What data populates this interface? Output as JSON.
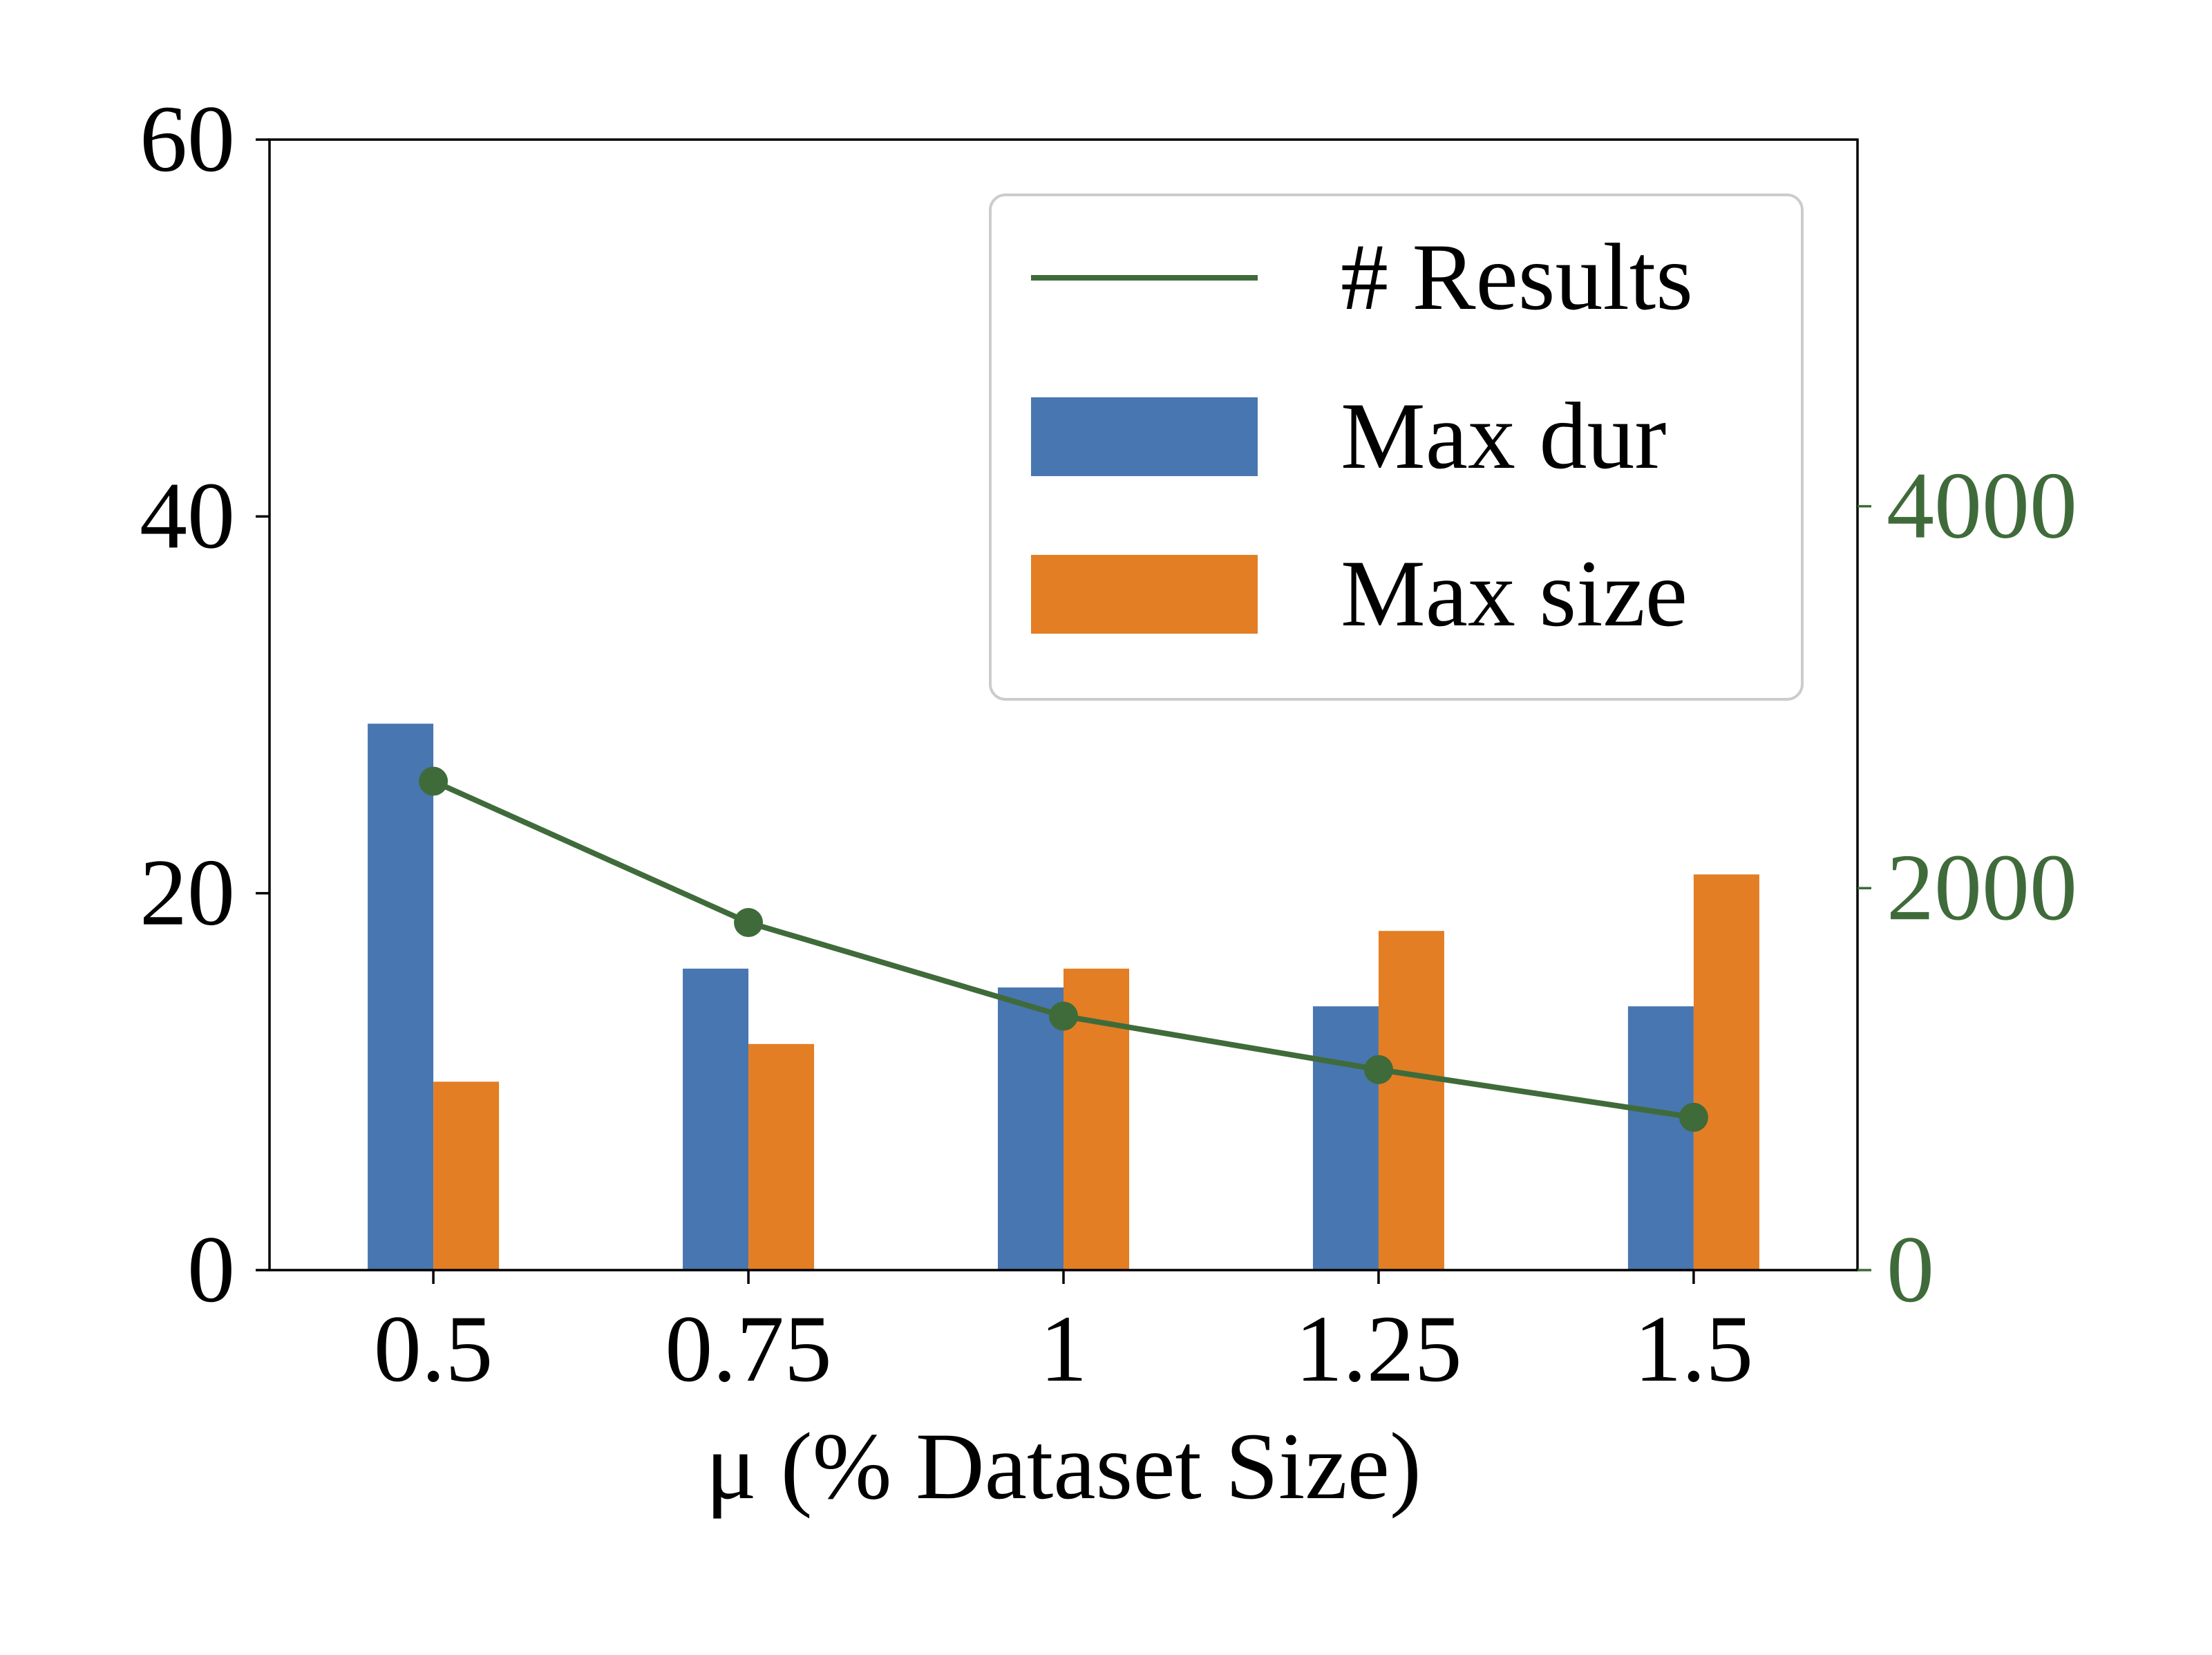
{
  "chart_data": {
    "type": "bar",
    "categories": [
      "0.5",
      "0.75",
      "1",
      "1.25",
      "1.5"
    ],
    "xlabel": "μ (% Dataset Size)",
    "ylabel": "",
    "ylim": [
      0,
      60
    ],
    "y_ticks": [
      "0",
      "20",
      "40",
      "60"
    ],
    "y2label": "",
    "y2lim": [
      0,
      5920
    ],
    "y2_ticks": [
      "0",
      "2000",
      "4000"
    ],
    "series": [
      {
        "name": "Max dur",
        "type": "bar",
        "axis": "left",
        "color": "#4876b0",
        "values": [
          29,
          16,
          15,
          14,
          14
        ]
      },
      {
        "name": "Max size",
        "type": "bar",
        "axis": "left",
        "color": "#e37e24",
        "values": [
          10,
          12,
          16,
          18,
          21
        ]
      },
      {
        "name": "# Results",
        "type": "line",
        "axis": "right",
        "color": "#3f6b3a",
        "marker": "circle",
        "values": [
          2560,
          1820,
          1330,
          1050,
          800
        ]
      }
    ],
    "legend": {
      "placement": "top-right",
      "order": [
        "# Results",
        "Max dur",
        "Max size"
      ]
    },
    "grid": false
  }
}
